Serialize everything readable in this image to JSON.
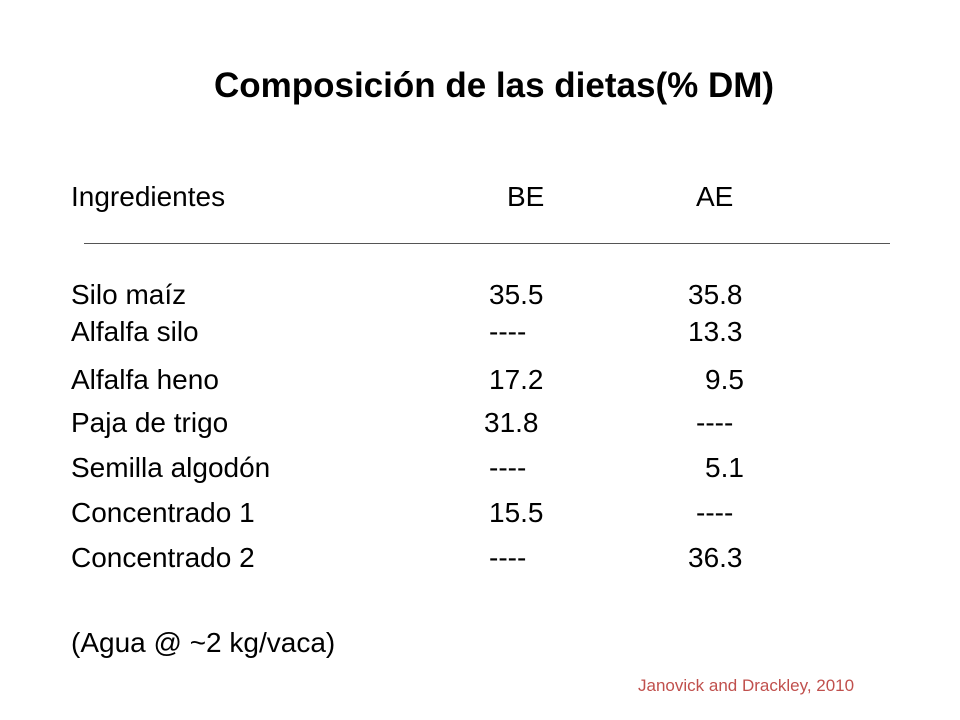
{
  "slide": {
    "title": "Composición de las dietas(% DM)",
    "header": {
      "ingredients": "Ingredientes",
      "be": "BE",
      "ae": "AE"
    },
    "rows": [
      {
        "name": "Silo maíz",
        "be": "35.5",
        "ae": "35.8"
      },
      {
        "name": "Alfalfa silo",
        "be": "----",
        "ae": "13.3"
      },
      {
        "name": "Alfalfa heno",
        "be": "17.2",
        "ae": "9.5"
      },
      {
        "name": "Paja de trigo",
        "be": "31.8",
        "ae": "----"
      },
      {
        "name": "Semilla algodón",
        "be": "----",
        "ae": "5.1"
      },
      {
        "name": "Concentrado 1",
        "be": "15.5",
        "ae": "----"
      },
      {
        "name": "Concentrado 2",
        "be": "----",
        "ae": "36.3"
      }
    ],
    "note": "(Agua @ ~2 kg/vaca)",
    "citation": "Janovick and Drackley, 2010",
    "citation_color": "#c0504d"
  }
}
